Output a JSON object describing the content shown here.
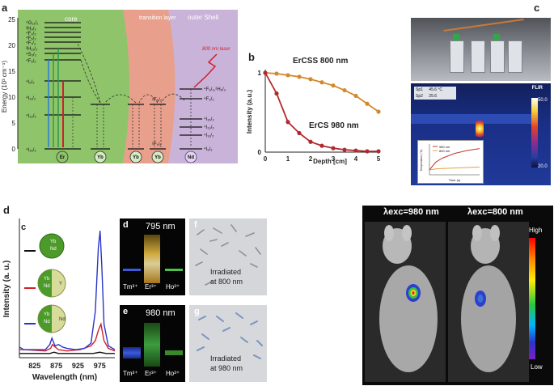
{
  "panel_labels": {
    "a": "a",
    "b": "b",
    "c": "c",
    "d": "d",
    "e": "e"
  },
  "panel_a": {
    "ylabel": "Energy (10³ cm⁻¹)",
    "yticks": [
      "0",
      "5",
      "10",
      "15",
      "20",
      "25"
    ],
    "regions": {
      "core": "core",
      "transition": "transition layer",
      "outer": "outer Shell"
    },
    "laser_label": "800 nm laser",
    "ions": [
      "Er",
      "Yb",
      "Yb",
      "Yb",
      "Nd"
    ],
    "er_levels": [
      "⁴I₁₅/₂",
      "⁴I₁₃/₂",
      "⁴I₁₁/₂",
      "⁴I₉/₂",
      "⁴F₉/₂",
      "⁴S₃/₂",
      "²H₁₁/₂",
      "⁴F₇/₂",
      "⁴F₅/₂",
      "⁴F₃/₂",
      "²H₉/₂",
      "⁴G₁₁/₂"
    ],
    "yb_levels": [
      "²F₅/₂",
      "²F₇/₂"
    ],
    "nd_levels": [
      "⁴F₅/₂,²H₉/₂",
      "⁴F₃/₂",
      "⁴I₁₅/₂",
      "⁴I₁₃/₂",
      "⁴I₁₁/₂",
      "⁴I₉/₂"
    ]
  },
  "panel_b": {
    "xlabel": "Depth [cm]",
    "ylabel": "Intensity (a.u.)"
  },
  "panel_c": {
    "flir_label": "FLIR",
    "sp1": "Sp1",
    "sp1_val": "45.6 °C",
    "sp2": "Sp2",
    "sp2_val": "25.6",
    "scale_max": "50.0",
    "scale_min": "20.0",
    "inset_legend": [
      "980 nm",
      "800 nm"
    ],
    "inset_xlabel": "Time (s)",
    "inset_ylabel": "Temperature (°C)"
  },
  "panel_d": {
    "sublabel_c": "c",
    "xlabel": "Wavelength (nm)",
    "ylabel": "Intensity (a. u.)",
    "xticks": [
      "825",
      "875",
      "925",
      "975"
    ],
    "sphere_labels": [
      [
        "Yb",
        "Nd"
      ],
      [
        "Yb",
        "Nd",
        "Y"
      ],
      [
        "Yb",
        "Nd",
        "Nd"
      ]
    ],
    "vial_panels": [
      {
        "sub": "d",
        "wavelength": "795 nm",
        "ions": [
          "Tm³⁺",
          "Er³⁺",
          "Ho³⁺"
        ]
      },
      {
        "sub": "e",
        "wavelength": "980 nm",
        "ions": [
          "Tm³⁺",
          "Er³⁺",
          "Ho³⁺"
        ]
      }
    ],
    "cell_panels": [
      {
        "sub": "f",
        "text1": "Irradiated",
        "text2": "at 800 nm"
      },
      {
        "sub": "g",
        "text1": "Irradiated",
        "text2": "at 980 nm"
      }
    ]
  },
  "panel_e": {
    "title_left": "λexc=980 nm",
    "title_right": "λexc=800 nm",
    "high": "High",
    "low": "Low"
  },
  "chart_data": [
    {
      "type": "line",
      "panel": "b",
      "xlabel": "Depth [cm]",
      "ylabel": "Intensity (a.u.)",
      "x": [
        0,
        1,
        2,
        3,
        4,
        5
      ],
      "xlim": [
        0,
        5
      ],
      "ylim": [
        0,
        1
      ],
      "yticks": [
        "0",
        "1"
      ],
      "series": [
        {
          "name": "ErCSS 800 nm",
          "color": "#d4892a",
          "x": [
            0,
            0.5,
            1,
            1.5,
            2,
            2.5,
            3,
            3.5,
            4,
            4.5,
            5
          ],
          "values": [
            1.0,
            0.99,
            0.97,
            0.95,
            0.92,
            0.88,
            0.84,
            0.78,
            0.71,
            0.61,
            0.51
          ]
        },
        {
          "name": "ErCS 980 nm",
          "color": "#b22a2e",
          "x": [
            0,
            0.5,
            1,
            1.5,
            2,
            2.5,
            3,
            3.5,
            4,
            4.5,
            5
          ],
          "values": [
            1.0,
            0.74,
            0.38,
            0.24,
            0.13,
            0.08,
            0.05,
            0.03,
            0.02,
            0.01,
            0.01
          ]
        }
      ]
    },
    {
      "type": "line",
      "panel": "d",
      "xlabel": "Wavelength (nm)",
      "ylabel": "Intensity (a. u.)",
      "xlim": [
        790,
        1010
      ],
      "ylim": [
        0,
        1
      ],
      "series": [
        {
          "name": "",
          "color": "#111111",
          "x": [
            790,
            850,
            860,
            870,
            880,
            900,
            930,
            960,
            975,
            990,
            1010
          ],
          "values": [
            0.02,
            0.02,
            0.02,
            0.03,
            0.02,
            0.02,
            0.02,
            0.02,
            0.03,
            0.02,
            0.02
          ]
        },
        {
          "name": "",
          "color": "#d11f2a",
          "x": [
            790,
            800,
            850,
            862,
            866,
            880,
            900,
            930,
            955,
            965,
            972,
            978,
            985,
            995,
            1010
          ],
          "values": [
            0.05,
            0.05,
            0.04,
            0.06,
            0.09,
            0.05,
            0.04,
            0.05,
            0.08,
            0.12,
            0.2,
            0.25,
            0.12,
            0.06,
            0.04
          ]
        },
        {
          "name": "",
          "color": "#2a35c8",
          "x": [
            790,
            800,
            850,
            860,
            865,
            872,
            880,
            890,
            900,
            920,
            940,
            955,
            965,
            972,
            976,
            980,
            985,
            995,
            1010
          ],
          "values": [
            0.07,
            0.05,
            0.05,
            0.09,
            0.14,
            0.08,
            0.09,
            0.07,
            0.06,
            0.05,
            0.06,
            0.1,
            0.35,
            0.85,
            0.98,
            0.7,
            0.25,
            0.08,
            0.05
          ]
        }
      ]
    },
    {
      "type": "line",
      "panel": "c-inset",
      "xlabel": "Time (s)",
      "ylabel": "Temperature (°C)",
      "series": [
        {
          "name": "980 nm",
          "color": "#c0392b",
          "x": [
            0,
            50,
            100,
            200,
            300,
            400
          ],
          "values": [
            25,
            33,
            37,
            42,
            45,
            47
          ]
        },
        {
          "name": "800 nm",
          "color": "#e6a23c",
          "x": [
            0,
            50,
            100,
            200,
            300,
            400
          ],
          "values": [
            25,
            26,
            26.5,
            27,
            27.5,
            28
          ]
        }
      ]
    }
  ]
}
